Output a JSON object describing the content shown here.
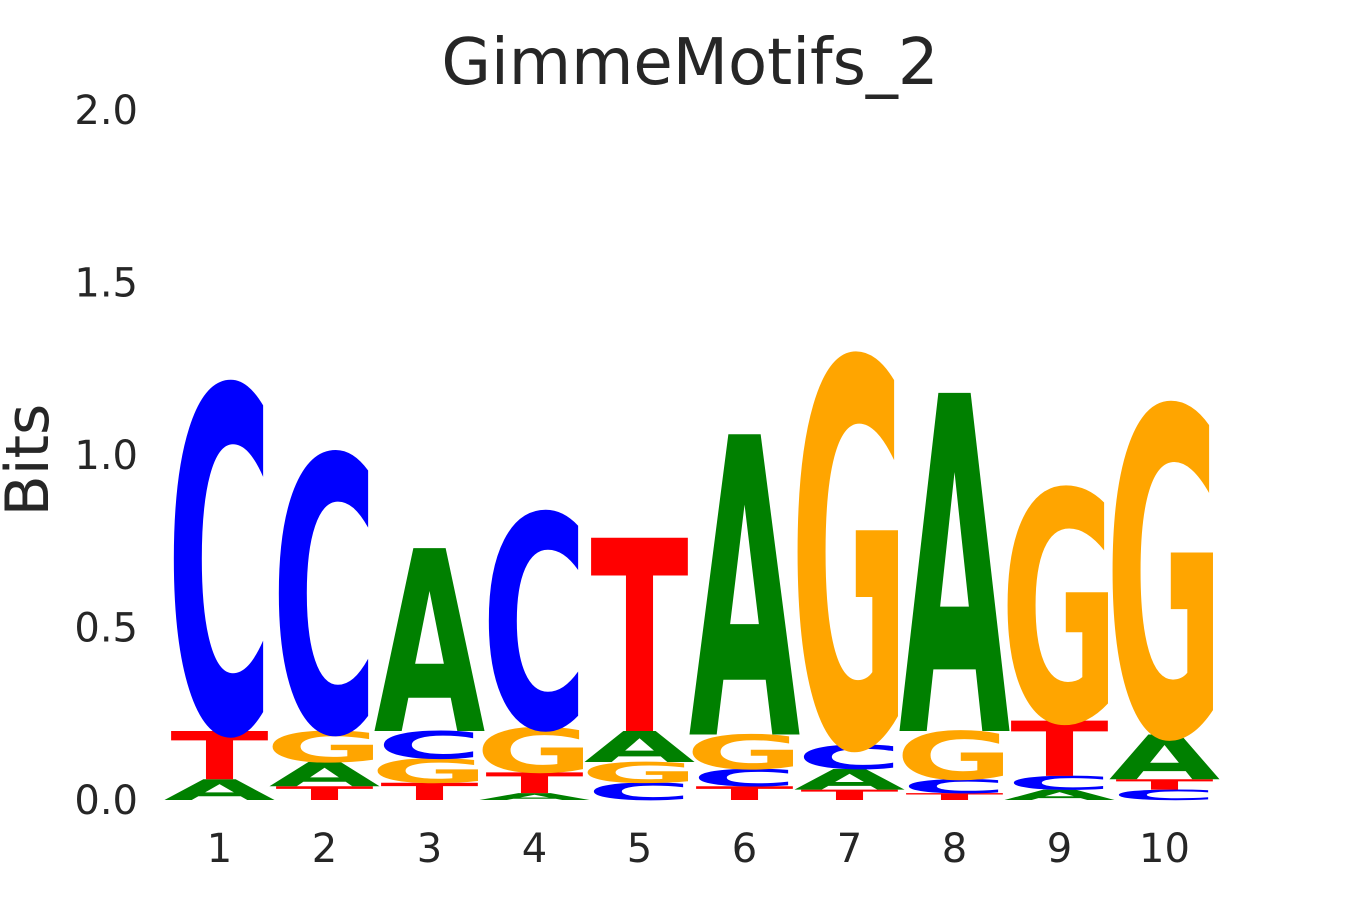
{
  "chart_data": {
    "type": "sequence_logo",
    "title": "GimmeMotifs_2",
    "xlabel": "",
    "ylabel": "Bits",
    "ylim": [
      0,
      2
    ],
    "yticks": [
      "0.0",
      "0.5",
      "1.0",
      "1.5",
      "2.0"
    ],
    "xticks": [
      "1",
      "2",
      "3",
      "4",
      "5",
      "6",
      "7",
      "8",
      "9",
      "10"
    ],
    "grid": false,
    "colors": {
      "A": "#008000",
      "C": "#0000ff",
      "G": "#ffa500",
      "T": "#ff0000"
    },
    "positions": [
      {
        "pos": "1",
        "stack": [
          {
            "letter": "A",
            "bits": 0.06
          },
          {
            "letter": "T",
            "bits": 0.14
          },
          {
            "letter": "C",
            "bits": 1.0
          }
        ]
      },
      {
        "pos": "2",
        "stack": [
          {
            "letter": "T",
            "bits": 0.04
          },
          {
            "letter": "A",
            "bits": 0.07
          },
          {
            "letter": "G",
            "bits": 0.09
          },
          {
            "letter": "C",
            "bits": 0.8
          }
        ]
      },
      {
        "pos": "3",
        "stack": [
          {
            "letter": "T",
            "bits": 0.05
          },
          {
            "letter": "G",
            "bits": 0.07
          },
          {
            "letter": "C",
            "bits": 0.08
          },
          {
            "letter": "A",
            "bits": 0.53
          }
        ]
      },
      {
        "pos": "4",
        "stack": [
          {
            "letter": "A",
            "bits": 0.02
          },
          {
            "letter": "T",
            "bits": 0.06
          },
          {
            "letter": "G",
            "bits": 0.13
          },
          {
            "letter": "C",
            "bits": 0.62
          }
        ]
      },
      {
        "pos": "5",
        "stack": [
          {
            "letter": "C",
            "bits": 0.05
          },
          {
            "letter": "G",
            "bits": 0.06
          },
          {
            "letter": "A",
            "bits": 0.09
          },
          {
            "letter": "T",
            "bits": 0.56
          }
        ]
      },
      {
        "pos": "6",
        "stack": [
          {
            "letter": "T",
            "bits": 0.04
          },
          {
            "letter": "C",
            "bits": 0.05
          },
          {
            "letter": "G",
            "bits": 0.1
          },
          {
            "letter": "A",
            "bits": 0.87
          }
        ]
      },
      {
        "pos": "7",
        "stack": [
          {
            "letter": "T",
            "bits": 0.03
          },
          {
            "letter": "A",
            "bits": 0.06
          },
          {
            "letter": "C",
            "bits": 0.07
          },
          {
            "letter": "G",
            "bits": 1.12
          }
        ]
      },
      {
        "pos": "8",
        "stack": [
          {
            "letter": "T",
            "bits": 0.02
          },
          {
            "letter": "C",
            "bits": 0.04
          },
          {
            "letter": "G",
            "bits": 0.14
          },
          {
            "letter": "A",
            "bits": 0.98
          }
        ]
      },
      {
        "pos": "9",
        "stack": [
          {
            "letter": "A",
            "bits": 0.03
          },
          {
            "letter": "C",
            "bits": 0.04
          },
          {
            "letter": "T",
            "bits": 0.16
          },
          {
            "letter": "G",
            "bits": 0.67
          }
        ]
      },
      {
        "pos": "10",
        "stack": [
          {
            "letter": "C",
            "bits": 0.03
          },
          {
            "letter": "T",
            "bits": 0.03
          },
          {
            "letter": "A",
            "bits": 0.13
          },
          {
            "letter": "G",
            "bits": 0.95
          }
        ]
      }
    ]
  }
}
